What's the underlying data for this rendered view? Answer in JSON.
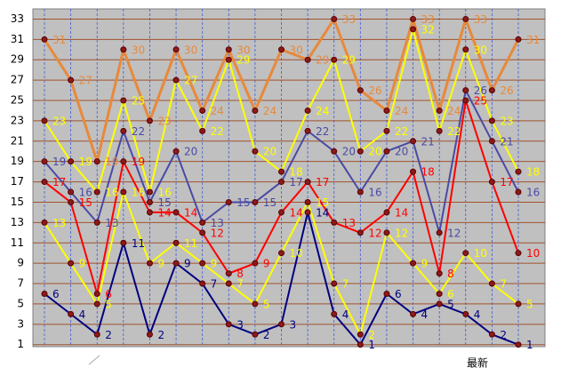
{
  "chart_data": {
    "type": "line",
    "annotation": "最新",
    "ylim": [
      0.8,
      34
    ],
    "yticks": [
      1,
      3,
      5,
      7,
      9,
      11,
      13,
      15,
      17,
      19,
      21,
      23,
      25,
      27,
      29,
      31,
      33
    ],
    "grid": true,
    "series": [
      {
        "color": "#e8893a",
        "values": [
          31,
          27,
          19,
          30,
          23,
          30,
          24,
          30,
          24,
          30,
          29,
          33,
          26,
          24,
          33,
          24,
          33,
          26,
          31
        ]
      },
      {
        "color": "#ffff00",
        "values": [
          23,
          19,
          16,
          25,
          16,
          27,
          22,
          29,
          20,
          18,
          24,
          29,
          20,
          22,
          32,
          22,
          30,
          23,
          18
        ]
      },
      {
        "color": "#4a4aa6",
        "values": [
          19,
          16,
          13,
          22,
          15,
          20,
          13,
          15,
          15,
          17,
          22,
          20,
          16,
          20,
          21,
          12,
          26,
          21,
          16
        ]
      },
      {
        "color": "#ff0000",
        "values": [
          17,
          15,
          6,
          19,
          14,
          14,
          12,
          8,
          9,
          14,
          17,
          13,
          12,
          14,
          18,
          8,
          25,
          17,
          10
        ]
      },
      {
        "color": "#ffff00",
        "values": [
          13,
          9,
          5,
          16,
          9,
          11,
          9,
          7,
          5,
          10,
          15,
          7,
          2,
          12,
          9,
          6,
          10,
          7,
          5
        ]
      },
      {
        "color": "#000080",
        "values": [
          6,
          4,
          2,
          11,
          2,
          9,
          7,
          3,
          2,
          3,
          14,
          4,
          1,
          6,
          4,
          5,
          4,
          2,
          1
        ]
      }
    ]
  }
}
